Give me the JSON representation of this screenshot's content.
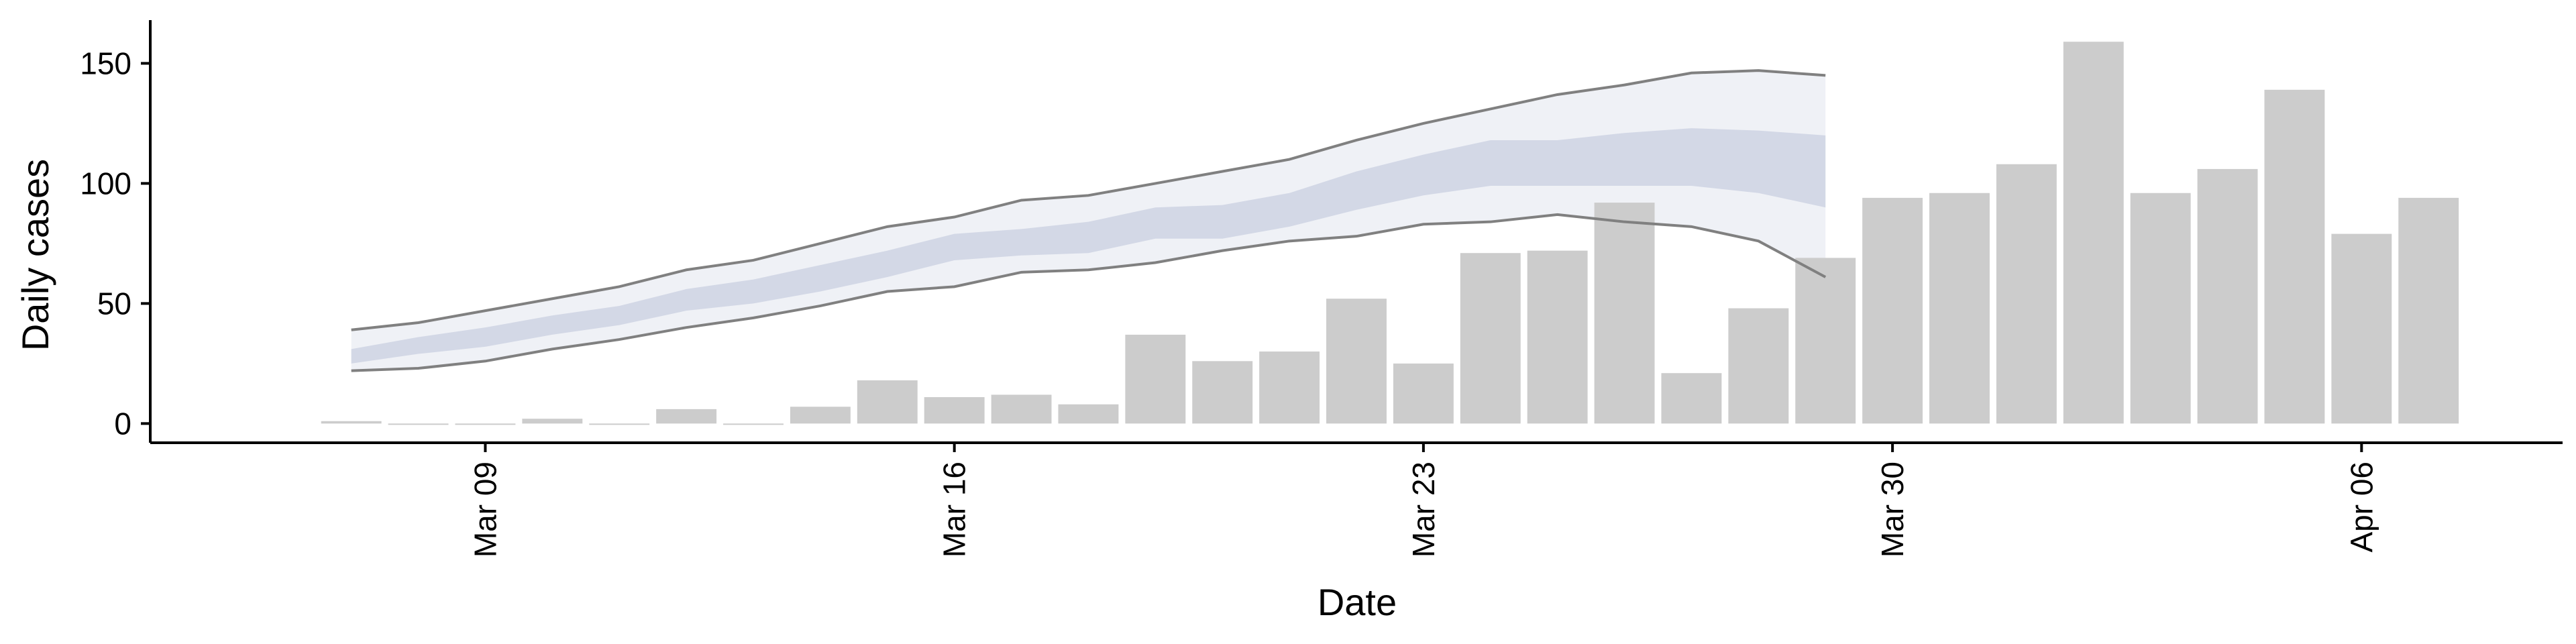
{
  "chart_data": {
    "type": "bar",
    "title": "",
    "xlabel": "Date",
    "ylabel": "Daily cases",
    "ylim": [
      -8,
      168
    ],
    "y_ticks": [
      0,
      50,
      100,
      150
    ],
    "x_ticks": [
      {
        "date": "2020-03-09",
        "label": "Mar 09"
      },
      {
        "date": "2020-03-16",
        "label": "Mar 16"
      },
      {
        "date": "2020-03-23",
        "label": "Mar 23"
      },
      {
        "date": "2020-03-30",
        "label": "Mar 30"
      },
      {
        "date": "2020-04-06",
        "label": "Apr 06"
      }
    ],
    "x_range": [
      "2020-03-04",
      "2020-04-09"
    ],
    "grid": false,
    "legend": "none",
    "colors": {
      "bars": "#cccccc",
      "band_outer": "#eceef5",
      "band_inner": "#c8cde0",
      "lines": "#808080"
    },
    "bars": {
      "dates": [
        "2020-03-07",
        "2020-03-08",
        "2020-03-09",
        "2020-03-10",
        "2020-03-11",
        "2020-03-12",
        "2020-03-13",
        "2020-03-14",
        "2020-03-15",
        "2020-03-16",
        "2020-03-17",
        "2020-03-18",
        "2020-03-19",
        "2020-03-20",
        "2020-03-21",
        "2020-03-22",
        "2020-03-23",
        "2020-03-24",
        "2020-03-25",
        "2020-03-26",
        "2020-03-27",
        "2020-03-28",
        "2020-03-29",
        "2020-03-30",
        "2020-03-31",
        "2020-04-01",
        "2020-04-02",
        "2020-04-03",
        "2020-04-04",
        "2020-04-05",
        "2020-04-06",
        "2020-04-07"
      ],
      "values": [
        1,
        0,
        0,
        2,
        0,
        6,
        0,
        7,
        18,
        11,
        12,
        8,
        37,
        26,
        30,
        52,
        25,
        71,
        72,
        92,
        21,
        48,
        69,
        94,
        96,
        108,
        159,
        96,
        106,
        139,
        79,
        94
      ]
    },
    "forecast": {
      "dates": [
        "2020-03-07",
        "2020-03-08",
        "2020-03-09",
        "2020-03-10",
        "2020-03-11",
        "2020-03-12",
        "2020-03-13",
        "2020-03-14",
        "2020-03-15",
        "2020-03-16",
        "2020-03-17",
        "2020-03-18",
        "2020-03-19",
        "2020-03-20",
        "2020-03-21",
        "2020-03-22",
        "2020-03-23",
        "2020-03-24",
        "2020-03-25",
        "2020-03-26",
        "2020-03-27",
        "2020-03-28",
        "2020-03-29"
      ],
      "upper": [
        39,
        42,
        47,
        52,
        57,
        64,
        68,
        75,
        82,
        86,
        93,
        95,
        100,
        105,
        110,
        118,
        125,
        131,
        137,
        141,
        146,
        147,
        145
      ],
      "inner_upper": [
        31,
        36,
        40,
        45,
        49,
        56,
        60,
        66,
        72,
        79,
        81,
        84,
        90,
        91,
        96,
        105,
        112,
        118,
        118,
        121,
        123,
        122,
        120
      ],
      "inner_lower": [
        25,
        29,
        32,
        37,
        41,
        47,
        50,
        55,
        61,
        68,
        70,
        71,
        77,
        77,
        82,
        89,
        95,
        99,
        99,
        99,
        99,
        96,
        90
      ],
      "lower": [
        22,
        23,
        26,
        31,
        35,
        40,
        44,
        49,
        55,
        57,
        63,
        64,
        67,
        72,
        76,
        78,
        83,
        84,
        87,
        84,
        82,
        76,
        61
      ]
    }
  }
}
